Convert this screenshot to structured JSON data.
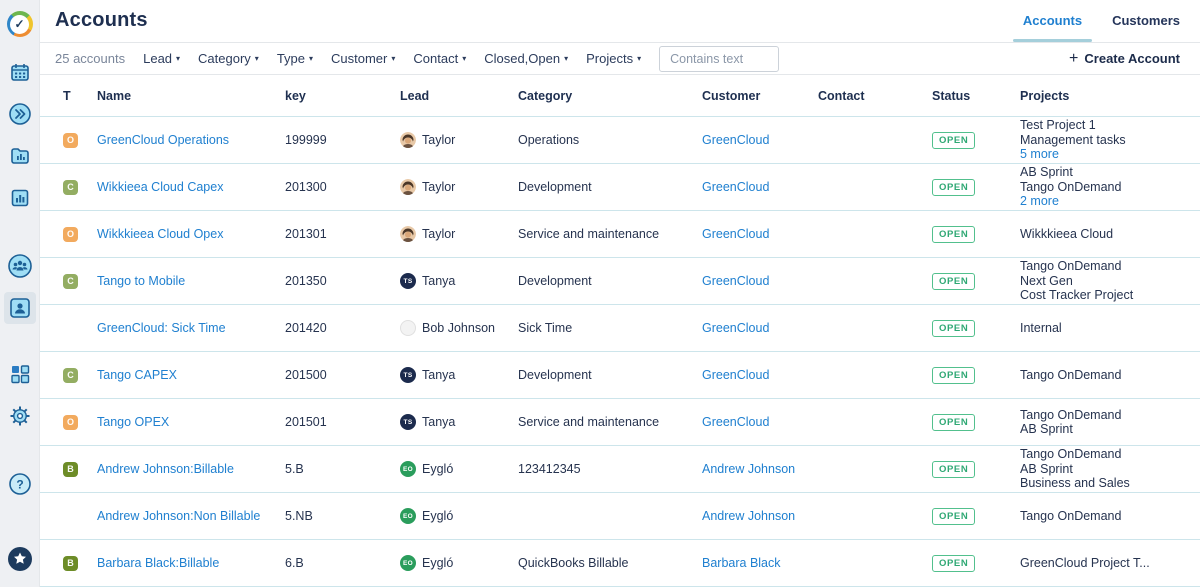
{
  "colors": {
    "accent_blue": "#2080d0",
    "status_green": "#2fa874",
    "badge_orange": "#f2aa5e",
    "badge_green": "#93ad62",
    "badge_dark_green": "#6d8c27",
    "navy": "#1e2f50"
  },
  "sidebar": {
    "items": [
      {
        "name": "tempo-logo-icon",
        "cls": "m8"
      },
      {
        "name": "calendar-icon",
        "cls": "m16"
      },
      {
        "name": "expand-icon",
        "cls": "m10"
      },
      {
        "name": "reports-icon",
        "cls": "m10"
      },
      {
        "name": "chart-icon",
        "cls": "m10"
      },
      {
        "name": "team-icon",
        "cls": "m36"
      },
      {
        "name": "accounts-icon",
        "cls": "m10",
        "active": true
      },
      {
        "name": "apps-icon",
        "cls": "m34"
      },
      {
        "name": "settings-icon",
        "cls": "m10"
      },
      {
        "name": "help-icon",
        "cls": "m36"
      }
    ],
    "bottom_item": {
      "name": "pin-icon"
    }
  },
  "header": {
    "title": "Accounts",
    "tabs": [
      {
        "label": "Accounts",
        "active": true
      },
      {
        "label": "Customers",
        "active": false
      }
    ]
  },
  "filters": {
    "count_label": "25 accounts",
    "dropdowns": [
      "Lead",
      "Category",
      "Type",
      "Customer",
      "Contact",
      "Closed,Open",
      "Projects"
    ],
    "search_placeholder": "Contains text",
    "create_button": "Create Account",
    "create_icon": "plus-icon",
    "caret_icon": "chevron-down-icon"
  },
  "table": {
    "columns": [
      "T",
      "Name",
      "key",
      "Lead",
      "Category",
      "Customer",
      "Contact",
      "Status",
      "Projects"
    ],
    "rows": [
      {
        "type": "O",
        "type_style": "orange",
        "name": "GreenCloud Operations",
        "key": "199999",
        "lead_name": "Taylor",
        "lead_avatar": "photo",
        "lead_initials": "",
        "category": "Operations",
        "customer": "GreenCloud",
        "contact": "",
        "status": "OPEN",
        "projects": [
          "Test Project 1",
          "Management tasks"
        ],
        "more": "5 more"
      },
      {
        "type": "C",
        "type_style": "green",
        "name": "Wikkieea Cloud Capex",
        "key": "201300",
        "lead_name": "Taylor",
        "lead_avatar": "photo",
        "lead_initials": "",
        "category": "Development",
        "customer": "GreenCloud",
        "contact": "",
        "status": "OPEN",
        "projects": [
          "AB Sprint",
          "Tango OnDemand"
        ],
        "more": "2 more"
      },
      {
        "type": "O",
        "type_style": "orange",
        "name": "Wikkkieea Cloud Opex",
        "key": "201301",
        "lead_name": "Taylor",
        "lead_avatar": "photo",
        "lead_initials": "",
        "category": "Service and maintenance",
        "customer": "GreenCloud",
        "contact": "",
        "status": "OPEN",
        "projects": [
          "Wikkkieea Cloud"
        ],
        "more": null
      },
      {
        "type": "C",
        "type_style": "green",
        "name": "Tango to Mobile",
        "key": "201350",
        "lead_name": "Tanya",
        "lead_avatar": "dark",
        "lead_initials": "TS",
        "category": "Development",
        "customer": "GreenCloud",
        "contact": "",
        "status": "OPEN",
        "projects": [
          "Tango OnDemand",
          "Next Gen",
          "Cost Tracker Project"
        ],
        "more": null
      },
      {
        "type": "",
        "type_style": null,
        "name": "GreenCloud: Sick Time",
        "key": "201420",
        "lead_name": "Bob Johnson",
        "lead_avatar": "light",
        "lead_initials": "",
        "category": "Sick Time",
        "customer": "GreenCloud",
        "contact": "",
        "status": "OPEN",
        "projects": [
          "Internal"
        ],
        "more": null
      },
      {
        "type": "C",
        "type_style": "green",
        "name": "Tango CAPEX",
        "key": "201500",
        "lead_name": "Tanya",
        "lead_avatar": "dark",
        "lead_initials": "TS",
        "category": "Development",
        "customer": "GreenCloud",
        "contact": "",
        "status": "OPEN",
        "projects": [
          "Tango OnDemand"
        ],
        "more": null
      },
      {
        "type": "O",
        "type_style": "orange",
        "name": "Tango OPEX",
        "key": "201501",
        "lead_name": "Tanya",
        "lead_avatar": "dark",
        "lead_initials": "TS",
        "category": "Service and maintenance",
        "customer": "GreenCloud",
        "contact": "",
        "status": "OPEN",
        "projects": [
          "Tango OnDemand",
          "AB Sprint"
        ],
        "more": null
      },
      {
        "type": "B",
        "type_style": "dark-green",
        "name": "Andrew Johnson:Billable",
        "key": "5.B",
        "lead_name": "Eygló",
        "lead_avatar": "green",
        "lead_initials": "EO",
        "category": "123412345",
        "customer": "Andrew Johnson",
        "contact": "",
        "status": "OPEN",
        "projects": [
          "Tango OnDemand",
          "AB Sprint",
          "Business and Sales"
        ],
        "more": null
      },
      {
        "type": "",
        "type_style": null,
        "name": "Andrew Johnson:Non Billable",
        "key": "5.NB",
        "lead_name": "Eygló",
        "lead_avatar": "green",
        "lead_initials": "EO",
        "category": "",
        "customer": "Andrew Johnson",
        "contact": "",
        "status": "OPEN",
        "projects": [
          "Tango OnDemand"
        ],
        "more": null
      },
      {
        "type": "B",
        "type_style": "dark-green",
        "name": "Barbara Black:Billable",
        "key": "6.B",
        "lead_name": "Eygló",
        "lead_avatar": "green",
        "lead_initials": "EO",
        "category": "QuickBooks Billable",
        "customer": "Barbara Black",
        "contact": "",
        "status": "OPEN",
        "projects": [
          "GreenCloud Project T..."
        ],
        "more": null
      }
    ]
  }
}
